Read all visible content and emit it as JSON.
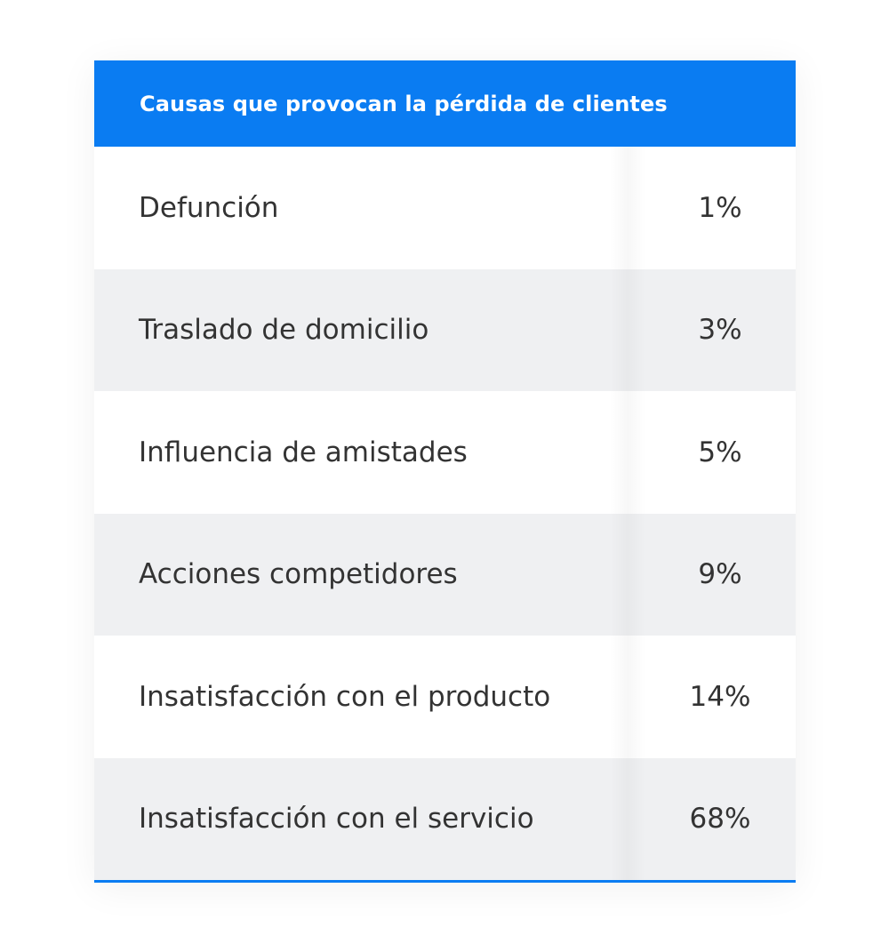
{
  "table": {
    "header": "Causas que provocan la pérdida de clientes",
    "rows": [
      {
        "label": "Defunción",
        "value": "1%"
      },
      {
        "label": "Traslado de domicilio",
        "value": "3%"
      },
      {
        "label": "Influencia de amistades",
        "value": "5%"
      },
      {
        "label": "Acciones competidores",
        "value": "9%"
      },
      {
        "label": "Insatisfacción con el producto",
        "value": "14%"
      },
      {
        "label": "Insatisfacción con el servicio",
        "value": "68%"
      }
    ]
  },
  "colors": {
    "header_bg": "#0a7cf2",
    "alt_row_bg": "#eff0f2",
    "text": "#333333"
  },
  "chart_data": {
    "type": "table",
    "title": "Causas que provocan la pérdida de clientes",
    "categories": [
      "Defunción",
      "Traslado de domicilio",
      "Influencia de amistades",
      "Acciones competidores",
      "Insatisfacción con el producto",
      "Insatisfacción con el servicio"
    ],
    "values": [
      1,
      3,
      5,
      9,
      14,
      68
    ],
    "unit": "%"
  }
}
